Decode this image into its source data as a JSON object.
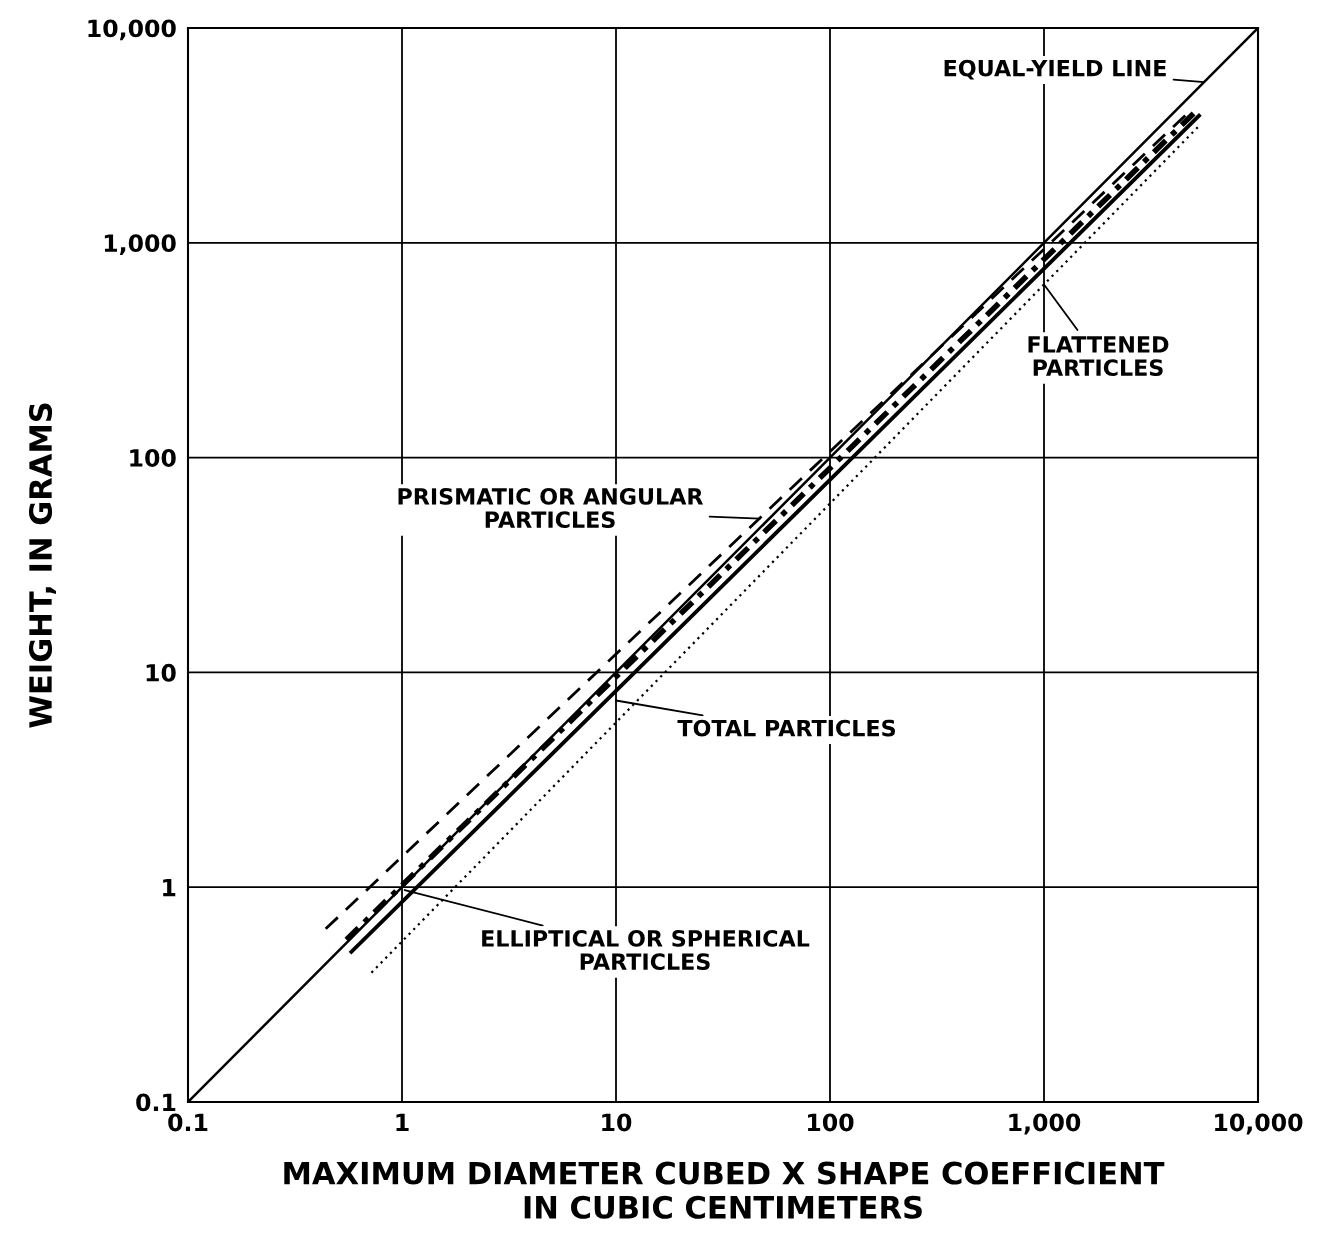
{
  "chart_data": {
    "type": "line",
    "log": "xy",
    "grid": true,
    "xlabel": "MAXIMUM DIAMETER CUBED X SHAPE COEFFICIENT\nIN CUBIC CENTIMETERS",
    "ylabel": "WEIGHT, IN GRAMS",
    "xlim": [
      0.1,
      10000
    ],
    "ylim": [
      0.1,
      10000
    ],
    "xticks": [
      0.1,
      1,
      10,
      100,
      {
        "value": 1000,
        "label": "1,000"
      },
      {
        "value": 10000,
        "label": "10,000"
      }
    ],
    "yticks": [
      0.1,
      1,
      10,
      100,
      {
        "value": 1000,
        "label": "1,000"
      },
      {
        "value": 10000,
        "label": "10,000"
      }
    ],
    "series": [
      {
        "color": "#000000",
        "line_style": "solid",
        "x": [
          0.1,
          10000
        ],
        "values": [
          0.1,
          10000
        ]
      },
      {
        "color": "#000000",
        "line_style": "dashed",
        "x": [
          0.44,
          4800
        ],
        "values": [
          0.64,
          4100
        ]
      },
      {
        "color": "#000000",
        "line_style": "dashdot",
        "x": [
          0.55,
          5000
        ],
        "values": [
          0.57,
          4000
        ]
      },
      {
        "color": "#000000",
        "line_style": "solid",
        "x": [
          0.58,
          5300
        ],
        "values": [
          0.5,
          3900
        ]
      },
      {
        "color": "#000000",
        "line_style": "dotted",
        "x": [
          0.72,
          5300
        ],
        "values": [
          0.4,
          3500
        ]
      }
    ],
    "annotations": [
      {
        "text": "EQUAL-YIELD LINE",
        "x": 5600,
        "y": 5600
      },
      {
        "text": "PRISMATIC OR ANGULAR\nPARTICLES",
        "x": 47,
        "y": 52
      },
      {
        "text": "FLATTENED\nPARTICLES",
        "x": 1000,
        "y": 640
      },
      {
        "text": "TOTAL PARTICLES",
        "x": 10,
        "y": 7.4
      },
      {
        "text": "ELLIPTICAL OR SPHERICAL\nPARTICLES",
        "x": 1.03,
        "y": 0.97
      }
    ]
  }
}
